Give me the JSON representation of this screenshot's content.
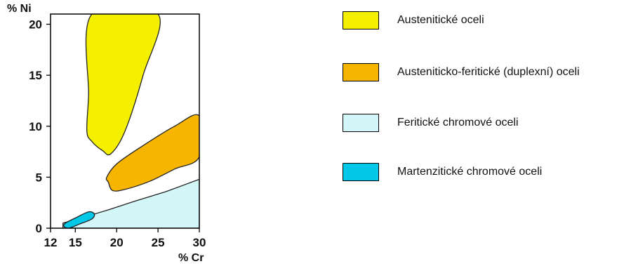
{
  "chart_data": {
    "type": "area",
    "ylabel": "% Ni",
    "xlabel": "% Cr",
    "xlim": [
      12,
      30
    ],
    "ylim": [
      0,
      21
    ],
    "x_ticks": [
      "12",
      "15",
      "20",
      "25",
      "30"
    ],
    "y_ticks": [
      "0",
      "5",
      "10",
      "15",
      "20"
    ],
    "grid": false,
    "legend_position": "right",
    "series": [
      {
        "name": "Austenitické oceli",
        "color": "#f5f000",
        "boundary": [
          [
            17.0,
            21
          ],
          [
            16.6,
            13.0
          ],
          [
            16.4,
            9.5
          ],
          [
            17.0,
            8.5
          ],
          [
            18.3,
            7.6
          ],
          [
            19.3,
            7.3
          ],
          [
            21.0,
            9.5
          ],
          [
            23.2,
            15.0
          ],
          [
            25.0,
            21
          ]
        ]
      },
      {
        "name": "Austeniticko-feritické (duplexní) oceli",
        "color": "#f7b500",
        "boundary": [
          [
            19.0,
            4.5
          ],
          [
            18.8,
            5.0
          ],
          [
            20.0,
            6.3
          ],
          [
            23.0,
            8.0
          ],
          [
            27.0,
            10.0
          ],
          [
            30.0,
            11.0
          ],
          [
            30.0,
            7.0
          ],
          [
            27.0,
            5.8
          ],
          [
            24.0,
            4.6
          ],
          [
            21.0,
            3.8
          ],
          [
            19.5,
            3.7
          ]
        ]
      },
      {
        "name": "Feritické chromové oceli",
        "color": "#d3f7f8",
        "boundary": [
          [
            13.5,
            0
          ],
          [
            13.5,
            0.5
          ],
          [
            16.5,
            1.2
          ],
          [
            19.0,
            1.8
          ],
          [
            22.0,
            2.6
          ],
          [
            26.0,
            3.6
          ],
          [
            30.0,
            4.8
          ],
          [
            30.0,
            0
          ]
        ]
      },
      {
        "name": "Martenzitické chromové oceli",
        "color": "#00c8e6",
        "boundary": [
          [
            13.6,
            0.2
          ],
          [
            13.8,
            0.5
          ],
          [
            15.0,
            1.0
          ],
          [
            16.6,
            1.6
          ],
          [
            17.3,
            1.4
          ],
          [
            17.0,
            0.9
          ],
          [
            15.5,
            0.4
          ],
          [
            14.2,
            0.0
          ]
        ]
      }
    ]
  }
}
